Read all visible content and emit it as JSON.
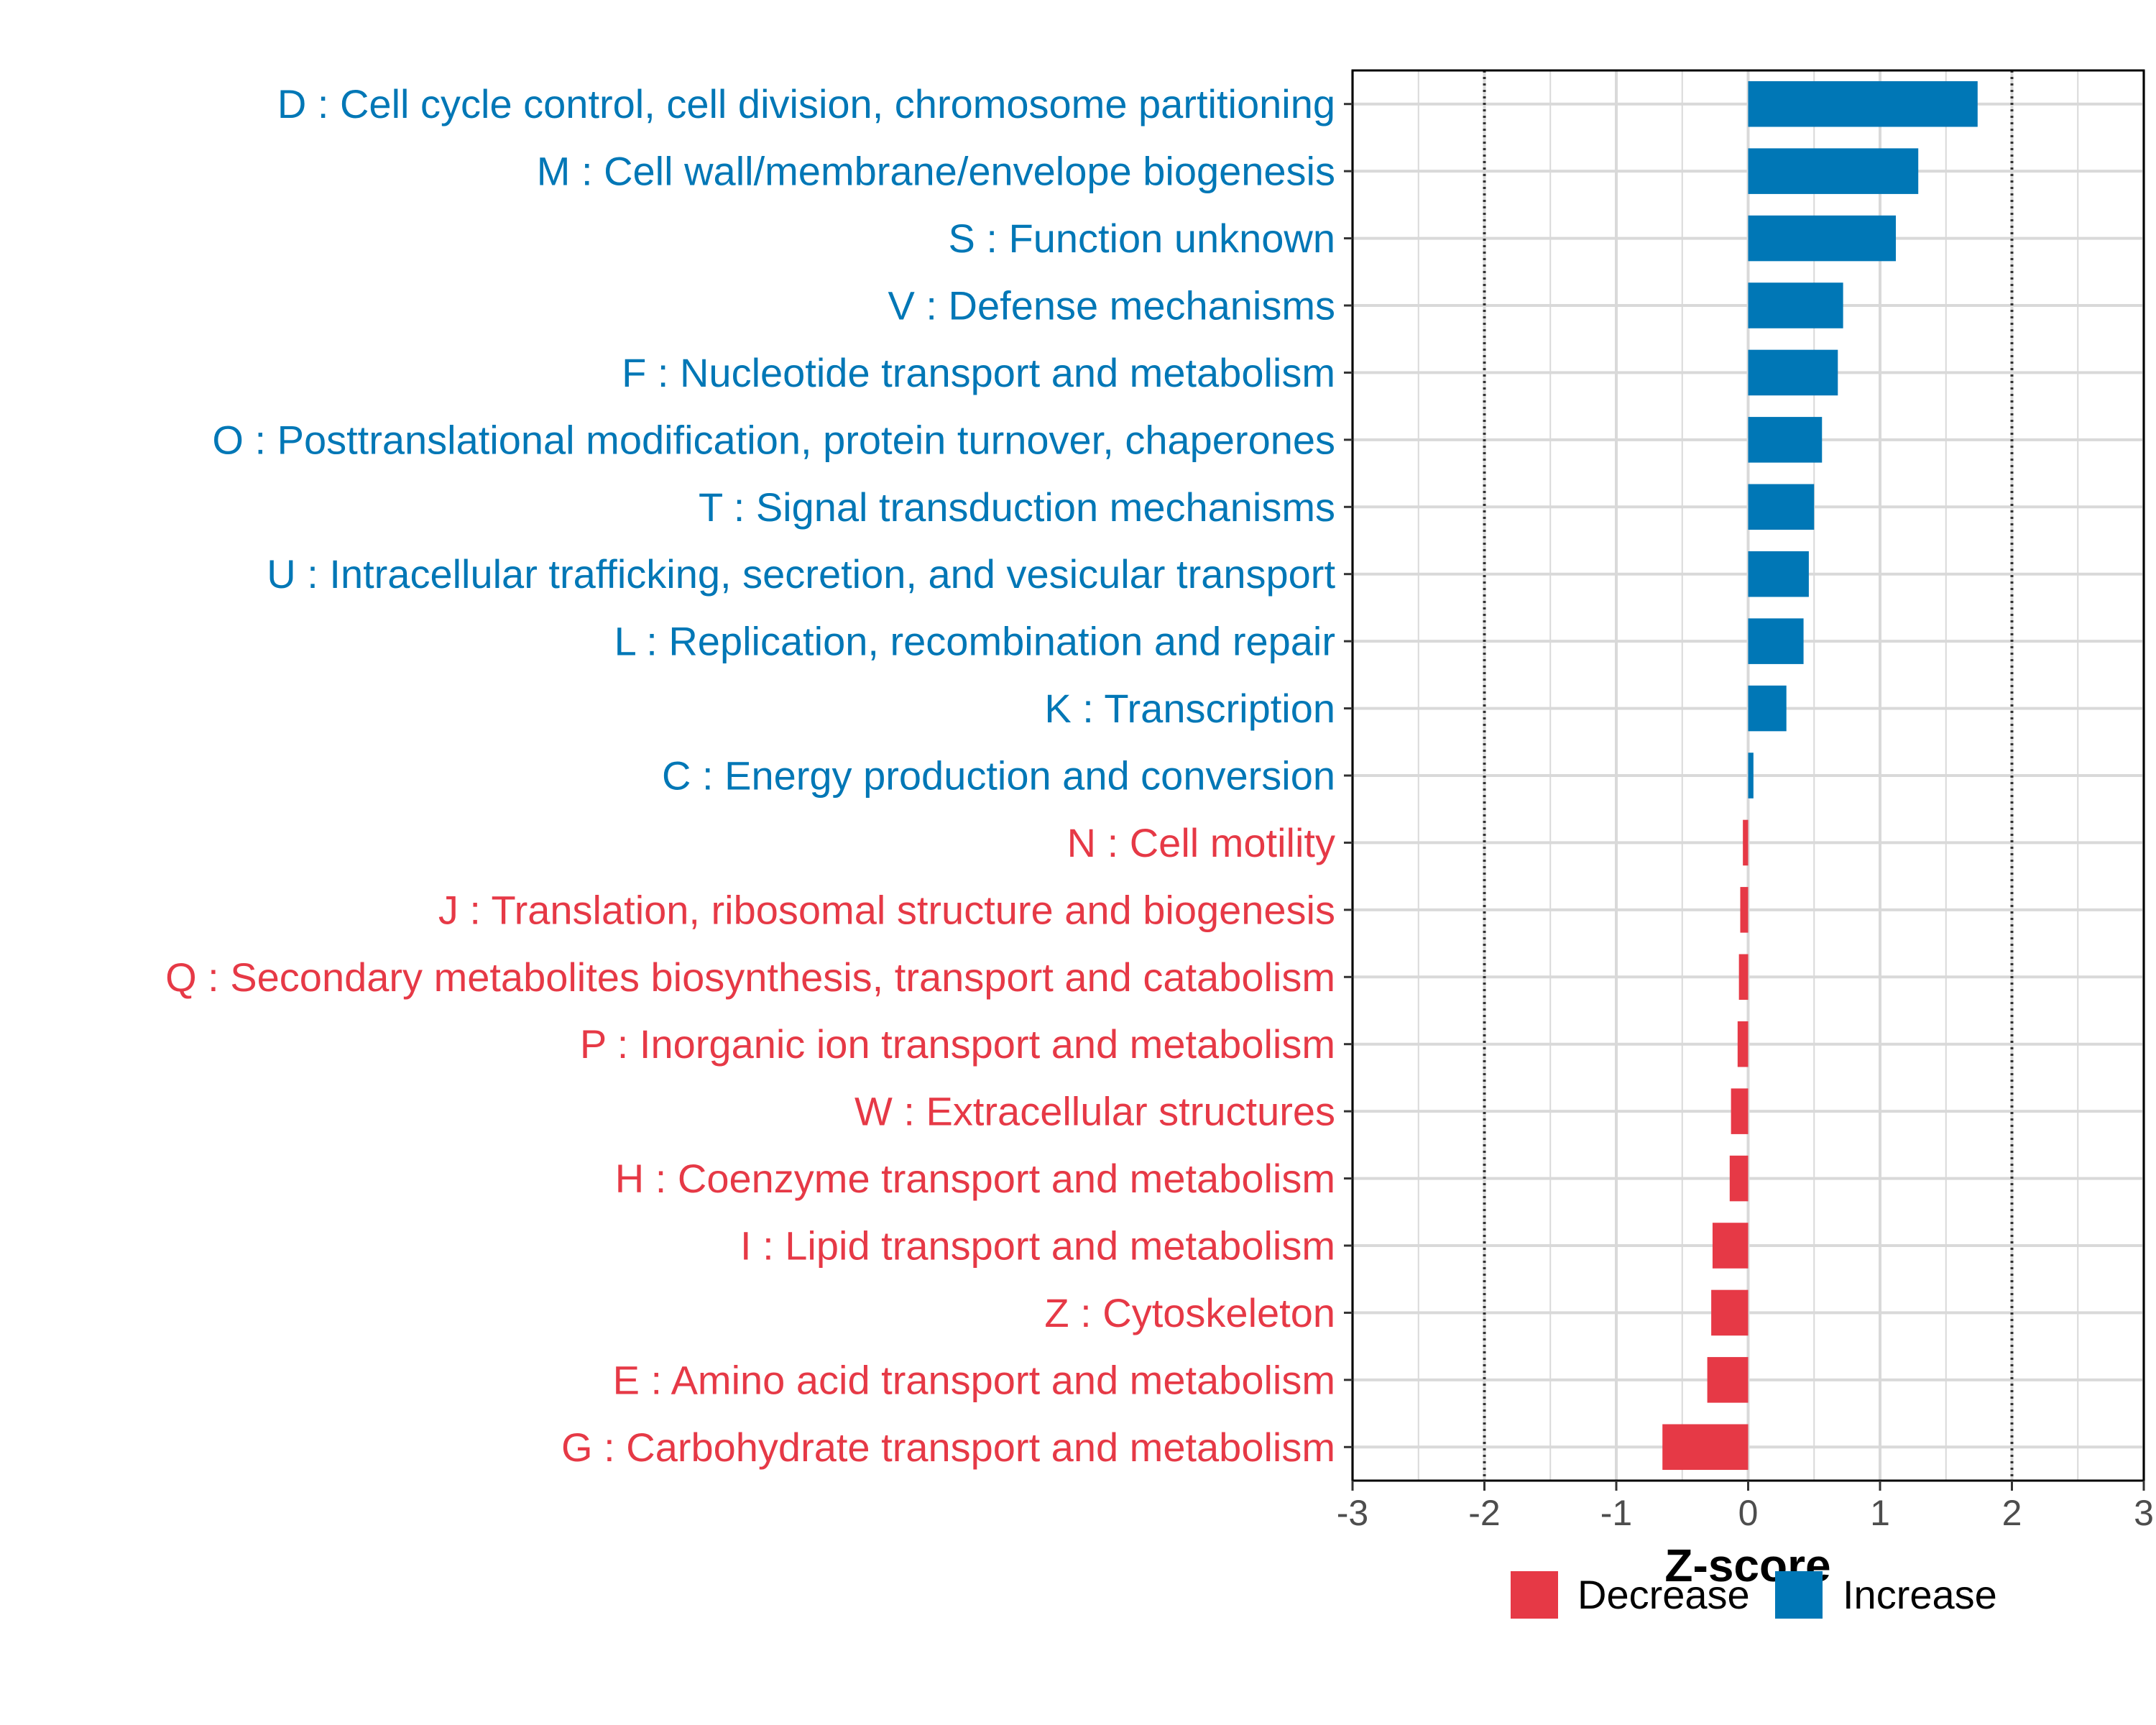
{
  "chart_data": {
    "type": "bar",
    "orientation": "horizontal",
    "xlabel": "Z-score",
    "xlim": [
      -3,
      3
    ],
    "xticks": [
      -3,
      -2,
      -1,
      0,
      1,
      2,
      3
    ],
    "xtick_labels": [
      "-3",
      "-2",
      "-1",
      "0",
      "1",
      "2",
      "3"
    ],
    "reference_lines": [
      -2,
      2
    ],
    "grid": true,
    "legend_position": "bottom",
    "legend": [
      {
        "name": "Decrease",
        "color": "#E63946"
      },
      {
        "name": "Increase",
        "color": "#0077B6"
      }
    ],
    "categories": [
      "D : Cell cycle control, cell division, chromosome partitioning",
      "M : Cell wall/membrane/envelope biogenesis",
      "S : Function unknown",
      "V : Defense mechanisms",
      "F : Nucleotide transport and metabolism",
      "O : Posttranslational modification, protein turnover, chaperones",
      "T : Signal transduction mechanisms",
      "U : Intracellular trafficking, secretion, and vesicular transport",
      "L : Replication, recombination and repair",
      "K : Transcription",
      "C : Energy production and conversion",
      "N : Cell motility",
      "J : Translation, ribosomal structure and biogenesis",
      "Q : Secondary metabolites biosynthesis, transport and catabolism",
      "P : Inorganic ion transport and metabolism",
      "W : Extracellular structures",
      "H : Coenzyme transport and metabolism",
      "I : Lipid transport and metabolism",
      "Z : Cytoskeleton",
      "E : Amino acid transport and metabolism",
      "G : Carbohydrate transport and metabolism"
    ],
    "values": [
      1.74,
      1.29,
      1.12,
      0.72,
      0.68,
      0.56,
      0.5,
      0.46,
      0.42,
      0.29,
      0.04,
      -0.04,
      -0.06,
      -0.07,
      -0.08,
      -0.13,
      -0.14,
      -0.27,
      -0.28,
      -0.31,
      -0.65
    ],
    "direction": [
      "Increase",
      "Increase",
      "Increase",
      "Increase",
      "Increase",
      "Increase",
      "Increase",
      "Increase",
      "Increase",
      "Increase",
      "Increase",
      "Decrease",
      "Decrease",
      "Decrease",
      "Decrease",
      "Decrease",
      "Decrease",
      "Decrease",
      "Decrease",
      "Decrease",
      "Decrease"
    ]
  }
}
